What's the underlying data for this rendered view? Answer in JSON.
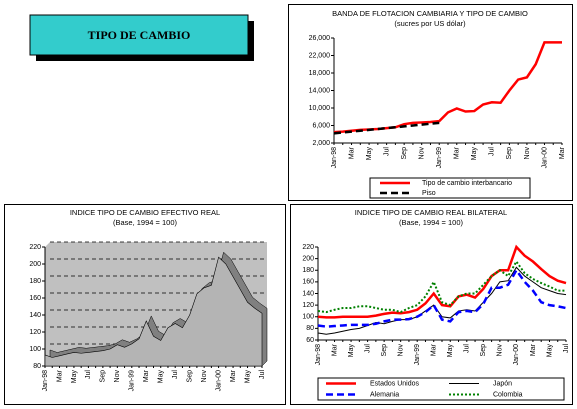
{
  "title_box": "TIPO DE CAMBIO",
  "chart_data": [
    {
      "type": "line",
      "title": "BANDA DE FLOTACION CAMBIARIA Y TIPO DE CAMBIO",
      "subtitle": "(sucres por US dólar)",
      "categories": [
        "Jan-98",
        null,
        "Mar",
        null,
        "May",
        null,
        "Jul",
        null,
        "Sep",
        null,
        "Nov",
        null,
        "Jan-99",
        null,
        "Mar",
        null,
        "May",
        null,
        "Jul",
        null,
        "Sep",
        null,
        "Nov",
        null,
        "Jan-00",
        null,
        "Mar"
      ],
      "ylim": [
        2000,
        26000
      ],
      "yticks": [
        {
          "value": 2000,
          "label": "2,000"
        },
        {
          "value": 6000,
          "label": "6,000"
        },
        {
          "value": 10000,
          "label": "10,000"
        },
        {
          "value": 14000,
          "label": "14,000"
        },
        {
          "value": 18000,
          "label": "18,000"
        },
        {
          "value": 22000,
          "label": "22,000"
        },
        {
          "value": 26000,
          "label": "26,000"
        }
      ],
      "grid": false,
      "series": [
        {
          "name": "Tipo de cambio interbancario",
          "color": "#ff0000",
          "style": "solid",
          "values": [
            4500,
            4600,
            4800,
            5000,
            5100,
            5200,
            5400,
            5600,
            6300,
            6600,
            6700,
            6800,
            7000,
            9000,
            9900,
            9200,
            9300,
            10800,
            11300,
            11200,
            14000,
            16500,
            17000,
            20000,
            25000,
            25000,
            25000
          ]
        },
        {
          "name": "Piso",
          "color": "#000000",
          "style": "dashed",
          "values": [
            4200,
            4400,
            4600,
            4800,
            5000,
            5200,
            5400,
            5600,
            5800,
            6000,
            6200,
            6400,
            6600,
            null,
            null,
            null,
            null,
            null,
            null,
            null,
            null,
            null,
            null,
            null,
            null,
            null,
            null
          ]
        }
      ]
    },
    {
      "type": "area",
      "title": "INDICE TIPO DE CAMBIO EFECTIVO REAL",
      "subtitle": "(Base, 1994 = 100)",
      "categories": [
        "Jan-98",
        null,
        "Mar",
        null,
        "May",
        null,
        "Jul",
        null,
        "Sep",
        null,
        "Nov",
        null,
        "Jan-99",
        null,
        "Mar",
        null,
        "May",
        null,
        "Jul",
        null,
        "Sep",
        null,
        "Nov",
        null,
        "Jan-00",
        null,
        "Mar",
        null,
        "May",
        null,
        "Jul"
      ],
      "ylim": [
        80,
        220
      ],
      "yticks": [
        80,
        100,
        120,
        140,
        160,
        180,
        200,
        220
      ],
      "grid": true,
      "color": "#b4b4b4",
      "values": [
        93,
        90,
        92,
        94,
        96,
        95,
        96,
        97,
        98,
        100,
        105,
        102,
        106,
        112,
        133,
        115,
        110,
        125,
        130,
        125,
        140,
        165,
        172,
        175,
        208,
        200,
        185,
        170,
        155,
        148,
        142
      ]
    },
    {
      "type": "line",
      "title": "INDICE TIPO DE CAMBIO REAL BILATERAL",
      "subtitle": "(Base, 1994 = 100)",
      "categories": [
        "Jan-98",
        null,
        "Mar",
        null,
        "May",
        null,
        "Jul",
        null,
        "Sep",
        null,
        "Nov",
        null,
        "Jan-99",
        null,
        "Mar",
        null,
        "May",
        null,
        "Jul",
        null,
        "Sep",
        null,
        "Nov",
        null,
        "Jan-00",
        null,
        "Mar",
        null,
        "May",
        null,
        "Jul"
      ],
      "ylim": [
        60,
        220
      ],
      "yticks": [
        60,
        80,
        100,
        120,
        140,
        160,
        180,
        200,
        220
      ],
      "grid": false,
      "series": [
        {
          "name": "Estados Unidos",
          "color": "#ff0000",
          "style": "solid",
          "values": [
            100,
            99,
            99,
            100,
            100,
            100,
            100,
            102,
            105,
            107,
            106,
            108,
            112,
            123,
            140,
            120,
            118,
            135,
            138,
            133,
            148,
            170,
            180,
            180,
            220,
            205,
            195,
            182,
            170,
            162,
            158
          ]
        },
        {
          "name": "Japón",
          "color": "#000000",
          "style": "thin",
          "values": [
            72,
            70,
            72,
            75,
            78,
            80,
            85,
            90,
            88,
            92,
            95,
            95,
            100,
            110,
            120,
            100,
            98,
            110,
            112,
            110,
            125,
            140,
            160,
            162,
            185,
            170,
            160,
            150,
            145,
            140,
            138
          ]
        },
        {
          "name": "Alemania",
          "color": "#0000ff",
          "style": "dashed",
          "values": [
            85,
            83,
            84,
            85,
            86,
            86,
            86,
            88,
            92,
            95,
            95,
            96,
            100,
            108,
            120,
            95,
            92,
            108,
            110,
            108,
            122,
            150,
            150,
            155,
            180,
            160,
            145,
            125,
            120,
            118,
            115
          ]
        },
        {
          "name": "Colombia",
          "color": "#008000",
          "style": "dotted",
          "values": [
            110,
            108,
            112,
            115,
            115,
            118,
            118,
            115,
            112,
            112,
            108,
            115,
            120,
            135,
            160,
            125,
            120,
            135,
            140,
            140,
            155,
            170,
            180,
            170,
            195,
            175,
            165,
            158,
            152,
            145,
            145
          ]
        }
      ]
    }
  ]
}
